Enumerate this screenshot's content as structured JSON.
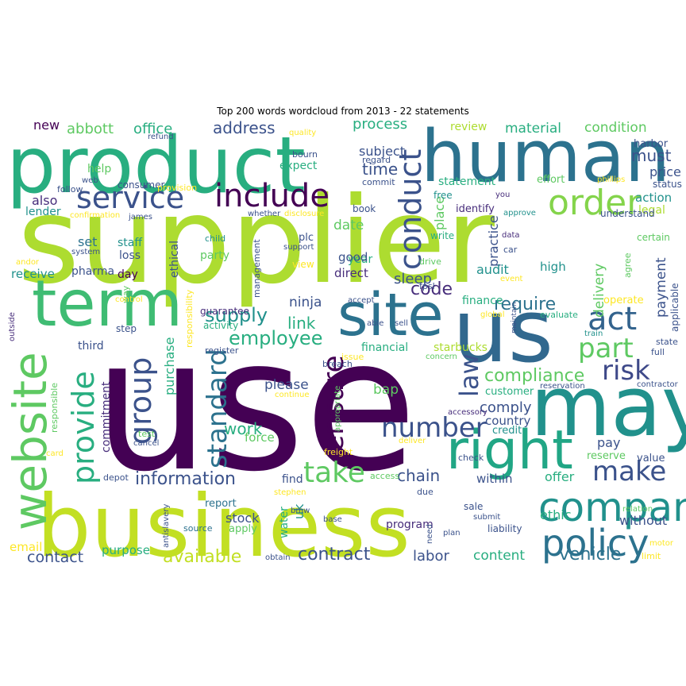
{
  "title": "Top 200 words wordcloud from 2013 - 22 statements",
  "palette": {
    "dark_purple": "#440154",
    "purple": "#472d7b",
    "indigo": "#3b528b",
    "blue": "#2c728e",
    "teal": "#21918c",
    "green": "#28ae80",
    "light_green": "#5ec962",
    "lime": "#addc30",
    "yellow": "#fde725"
  },
  "words": [
    {
      "text": "use",
      "color": "#440154"
    },
    {
      "text": "supplier",
      "color": "#addc30"
    },
    {
      "text": "business",
      "color": "#c2df23"
    },
    {
      "text": "product",
      "color": "#28ae80"
    },
    {
      "text": "human",
      "color": "#2c728e"
    },
    {
      "text": "us",
      "color": "#31688e"
    },
    {
      "text": "site",
      "color": "#2c728e"
    },
    {
      "text": "may",
      "color": "#21918c"
    },
    {
      "text": "term",
      "color": "#3fbc73"
    },
    {
      "text": "website",
      "color": "#5ec962"
    },
    {
      "text": "right",
      "color": "#21a685"
    },
    {
      "text": "company",
      "color": "#21918c"
    },
    {
      "text": "policy",
      "color": "#2c728e"
    },
    {
      "text": "include",
      "color": "#440154"
    },
    {
      "text": "order",
      "color": "#84d44b"
    },
    {
      "text": "service",
      "color": "#3b528b"
    },
    {
      "text": "act",
      "color": "#33638d"
    },
    {
      "text": "part",
      "color": "#5ec962"
    },
    {
      "text": "risk",
      "color": "#3e4989"
    },
    {
      "text": "make",
      "color": "#3b528b"
    },
    {
      "text": "take",
      "color": "#5ec962"
    },
    {
      "text": "conduct",
      "color": "#3b528b"
    },
    {
      "text": "group",
      "color": "#3b528b"
    },
    {
      "text": "standard",
      "color": "#2c728e"
    },
    {
      "text": "provide",
      "color": "#28ae80"
    },
    {
      "text": "ensure",
      "color": "#440154"
    },
    {
      "text": "number",
      "color": "#3b528b"
    },
    {
      "text": "law",
      "color": "#3b528b"
    },
    {
      "text": "compliance",
      "color": "#5ec962"
    },
    {
      "text": "information",
      "color": "#3b528b"
    },
    {
      "text": "employee",
      "color": "#28ae80"
    },
    {
      "text": "supply",
      "color": "#21918c"
    },
    {
      "text": "require",
      "color": "#2c728e"
    },
    {
      "text": "vehicle",
      "color": "#2c728e"
    },
    {
      "text": "contract",
      "color": "#3b528b"
    },
    {
      "text": "available",
      "color": "#c2df23"
    },
    {
      "text": "chain",
      "color": "#3b528b"
    },
    {
      "text": "link",
      "color": "#28ae80"
    },
    {
      "text": "code",
      "color": "#472d7b"
    },
    {
      "text": "address",
      "color": "#3b528b"
    },
    {
      "text": "process",
      "color": "#28ae80"
    },
    {
      "text": "time",
      "color": "#3b528b"
    },
    {
      "text": "must",
      "color": "#3b528b"
    },
    {
      "text": "abbott",
      "color": "#5ec962"
    },
    {
      "text": "office",
      "color": "#28ae80"
    },
    {
      "text": "new",
      "color": "#440154"
    },
    {
      "text": "material",
      "color": "#28ae80"
    },
    {
      "text": "condition",
      "color": "#5ec962"
    },
    {
      "text": "review",
      "color": "#addc30"
    },
    {
      "text": "subject",
      "color": "#3b528b"
    },
    {
      "text": "expect",
      "color": "#28ae80"
    },
    {
      "text": "statement",
      "color": "#28ae80"
    },
    {
      "text": "price",
      "color": "#3b528b"
    },
    {
      "text": "action",
      "color": "#21918c"
    },
    {
      "text": "legal",
      "color": "#addc30"
    },
    {
      "text": "help",
      "color": "#5ec962"
    },
    {
      "text": "also",
      "color": "#472d7b"
    },
    {
      "text": "lender",
      "color": "#21918c"
    },
    {
      "text": "set",
      "color": "#2c728e"
    },
    {
      "text": "staff",
      "color": "#21918c"
    },
    {
      "text": "loss",
      "color": "#3b528b"
    },
    {
      "text": "date",
      "color": "#5ec962"
    },
    {
      "text": "year",
      "color": "#28ae80"
    },
    {
      "text": "place",
      "color": "#5ec962"
    },
    {
      "text": "sleep",
      "color": "#3b528b"
    },
    {
      "text": "good",
      "color": "#3b528b"
    },
    {
      "text": "direct",
      "color": "#472d7b"
    },
    {
      "text": "practice",
      "color": "#3b528b"
    },
    {
      "text": "delivery",
      "color": "#5ec962"
    },
    {
      "text": "payment",
      "color": "#3b528b"
    },
    {
      "text": "audit",
      "color": "#21918c"
    },
    {
      "text": "high",
      "color": "#21918c"
    },
    {
      "text": "finance",
      "color": "#28ae80"
    },
    {
      "text": "ninja",
      "color": "#3b528b"
    },
    {
      "text": "party",
      "color": "#5ec962"
    },
    {
      "text": "receive",
      "color": "#21918c"
    },
    {
      "text": "pharma",
      "color": "#3b528b"
    },
    {
      "text": "day",
      "color": "#440154"
    },
    {
      "text": "way",
      "color": "#5ec962"
    },
    {
      "text": "ethical",
      "color": "#3b528b"
    },
    {
      "text": "purchase",
      "color": "#28ae80"
    },
    {
      "text": "third",
      "color": "#3b528b"
    },
    {
      "text": "commitment",
      "color": "#472d7b"
    },
    {
      "text": "please",
      "color": "#3b528b"
    },
    {
      "text": "work",
      "color": "#28ae80"
    },
    {
      "text": "force",
      "color": "#5ec962"
    },
    {
      "text": "bap",
      "color": "#5ec962"
    },
    {
      "text": "comply",
      "color": "#3b528b"
    },
    {
      "text": "country",
      "color": "#3b528b"
    },
    {
      "text": "customer",
      "color": "#28ae80"
    },
    {
      "text": "credit",
      "color": "#21918c"
    },
    {
      "text": "pay",
      "color": "#3b528b"
    },
    {
      "text": "reserve",
      "color": "#5ec962"
    },
    {
      "text": "offer",
      "color": "#28ae80"
    },
    {
      "text": "within",
      "color": "#3b528b"
    },
    {
      "text": "find",
      "color": "#3b528b"
    },
    {
      "text": "uk",
      "color": "#21918c"
    },
    {
      "text": "stock",
      "color": "#3b528b"
    },
    {
      "text": "water",
      "color": "#28ae80"
    },
    {
      "text": "program",
      "color": "#472d7b"
    },
    {
      "text": "labor",
      "color": "#3b528b"
    },
    {
      "text": "content",
      "color": "#28ae80"
    },
    {
      "text": "without",
      "color": "#3b528b"
    },
    {
      "text": "ethic",
      "color": "#28ae80"
    },
    {
      "text": "purpose",
      "color": "#28ae80"
    },
    {
      "text": "contact",
      "color": "#3b528b"
    },
    {
      "text": "email",
      "color": "#fde725"
    },
    {
      "text": "report",
      "color": "#2c728e"
    },
    {
      "text": "apply",
      "color": "#5ec962"
    },
    {
      "text": "source",
      "color": "#2c728e"
    },
    {
      "text": "financial",
      "color": "#28ae80"
    },
    {
      "text": "starbucks",
      "color": "#addc30"
    },
    {
      "text": "issue",
      "color": "#fde725"
    },
    {
      "text": "breach",
      "color": "#3b528b"
    },
    {
      "text": "responsible",
      "color": "#5ec962"
    },
    {
      "text": "value",
      "color": "#3b528b"
    },
    {
      "text": "operate",
      "color": "#fde725"
    },
    {
      "text": "applicable",
      "color": "#3b528b"
    },
    {
      "text": "agree",
      "color": "#5ec962"
    },
    {
      "text": "certain",
      "color": "#5ec962"
    },
    {
      "text": "understand",
      "color": "#3b528b"
    },
    {
      "text": "status",
      "color": "#3b528b"
    },
    {
      "text": "harbor",
      "color": "#3b528b"
    },
    {
      "text": "effort",
      "color": "#5ec962"
    },
    {
      "text": "commit",
      "color": "#3b528b"
    },
    {
      "text": "free",
      "color": "#21918c"
    },
    {
      "text": "identify",
      "color": "#472d7b"
    },
    {
      "text": "book",
      "color": "#3b528b"
    },
    {
      "text": "write",
      "color": "#28ae80"
    },
    {
      "text": "drive",
      "color": "#5ec962"
    },
    {
      "text": "fpsl",
      "color": "#3b528b"
    },
    {
      "text": "plc",
      "color": "#3b528b"
    },
    {
      "text": "support",
      "color": "#3b528b"
    },
    {
      "text": "view",
      "color": "#fde725"
    },
    {
      "text": "management",
      "color": "#3b528b"
    },
    {
      "text": "responsibility",
      "color": "#fde725"
    },
    {
      "text": "guarantee",
      "color": "#472d7b"
    },
    {
      "text": "activity",
      "color": "#28ae80"
    },
    {
      "text": "register",
      "color": "#3b528b"
    },
    {
      "text": "step",
      "color": "#3b528b"
    },
    {
      "text": "control",
      "color": "#fde725"
    },
    {
      "text": "consumer",
      "color": "#3b528b"
    },
    {
      "text": "web",
      "color": "#3b528b"
    },
    {
      "text": "follow",
      "color": "#3b528b"
    },
    {
      "text": "provision",
      "color": "#fde725"
    },
    {
      "text": "confirmation",
      "color": "#fde725"
    },
    {
      "text": "james",
      "color": "#3b528b"
    },
    {
      "text": "whether",
      "color": "#3b528b"
    },
    {
      "text": "disclosure",
      "color": "#fde725"
    },
    {
      "text": "child",
      "color": "#21918c"
    },
    {
      "text": "system",
      "color": "#3b528b"
    },
    {
      "text": "andor",
      "color": "#fde725"
    },
    {
      "text": "outside",
      "color": "#472d7b"
    },
    {
      "text": "quality",
      "color": "#fde725"
    },
    {
      "text": "refund",
      "color": "#3b528b"
    },
    {
      "text": "bourn",
      "color": "#3b528b"
    },
    {
      "text": "regard",
      "color": "#3b528b"
    },
    {
      "text": "you",
      "color": "#472d7b"
    },
    {
      "text": "phillips",
      "color": "#fde725"
    },
    {
      "text": "approve",
      "color": "#21918c"
    },
    {
      "text": "data",
      "color": "#472d7b"
    },
    {
      "text": "car",
      "color": "#3b528b"
    },
    {
      "text": "event",
      "color": "#fde725"
    },
    {
      "text": "accept",
      "color": "#3b528b"
    },
    {
      "text": "able",
      "color": "#3b528b"
    },
    {
      "text": "sell",
      "color": "#3b528b"
    },
    {
      "text": "global",
      "color": "#fde725"
    },
    {
      "text": "maintain",
      "color": "#3b528b"
    },
    {
      "text": "evaluate",
      "color": "#28ae80"
    },
    {
      "text": "train",
      "color": "#21918c"
    },
    {
      "text": "state",
      "color": "#3b528b"
    },
    {
      "text": "full",
      "color": "#3b528b"
    },
    {
      "text": "concern",
      "color": "#5ec962"
    },
    {
      "text": "reservation",
      "color": "#3b528b"
    },
    {
      "text": "contractor",
      "color": "#3b528b"
    },
    {
      "text": "continue",
      "color": "#fde725"
    },
    {
      "text": "appropriate",
      "color": "#5ec962"
    },
    {
      "text": "accessory",
      "color": "#472d7b"
    },
    {
      "text": "test",
      "color": "#5ec962"
    },
    {
      "text": "cancel",
      "color": "#3b528b"
    },
    {
      "text": "deliver",
      "color": "#fde725"
    },
    {
      "text": "freight",
      "color": "#fde725"
    },
    {
      "text": "check",
      "color": "#3b528b"
    },
    {
      "text": "card",
      "color": "#fde725"
    },
    {
      "text": "depot",
      "color": "#3b528b"
    },
    {
      "text": "access",
      "color": "#5ec962"
    },
    {
      "text": "antislavery",
      "color": "#3b528b"
    },
    {
      "text": "stephen",
      "color": "#fde725"
    },
    {
      "text": "due",
      "color": "#3b528b"
    },
    {
      "text": "sale",
      "color": "#3b528b"
    },
    {
      "text": "submit",
      "color": "#3b528b"
    },
    {
      "text": "relation",
      "color": "#5ec962"
    },
    {
      "text": "liability",
      "color": "#3b528b"
    },
    {
      "text": "plan",
      "color": "#3b528b"
    },
    {
      "text": "base",
      "color": "#3b528b"
    },
    {
      "text": "bmw",
      "color": "#3b528b"
    },
    {
      "text": "need",
      "color": "#3b528b"
    },
    {
      "text": "motor",
      "color": "#fde725"
    },
    {
      "text": "limit",
      "color": "#fde725"
    },
    {
      "text": "obtain",
      "color": "#3b528b"
    }
  ]
}
